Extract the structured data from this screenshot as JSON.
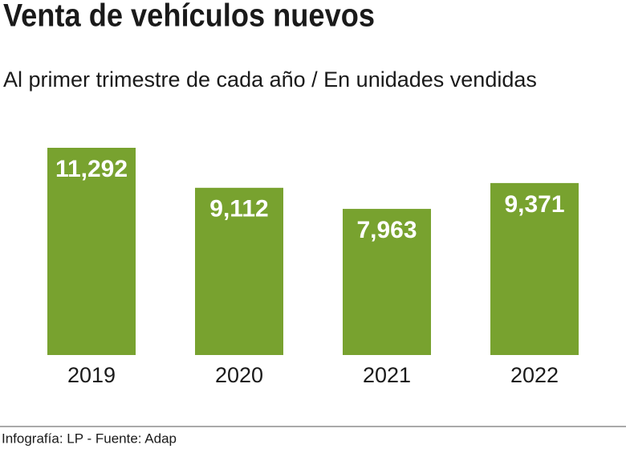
{
  "chart_data": {
    "type": "bar",
    "title": "Venta de vehículos nuevos",
    "subtitle": "Al primer trimestre de cada año / En unidades vendidas",
    "categories": [
      "2019",
      "2020",
      "2021",
      "2022"
    ],
    "values": [
      11292,
      9112,
      7963,
      9371
    ],
    "value_labels": [
      "11,292",
      "9,112",
      "7,963",
      "9,371"
    ],
    "color": "#78a22f",
    "source": "Infografía: LP - Fuente: Adap"
  }
}
